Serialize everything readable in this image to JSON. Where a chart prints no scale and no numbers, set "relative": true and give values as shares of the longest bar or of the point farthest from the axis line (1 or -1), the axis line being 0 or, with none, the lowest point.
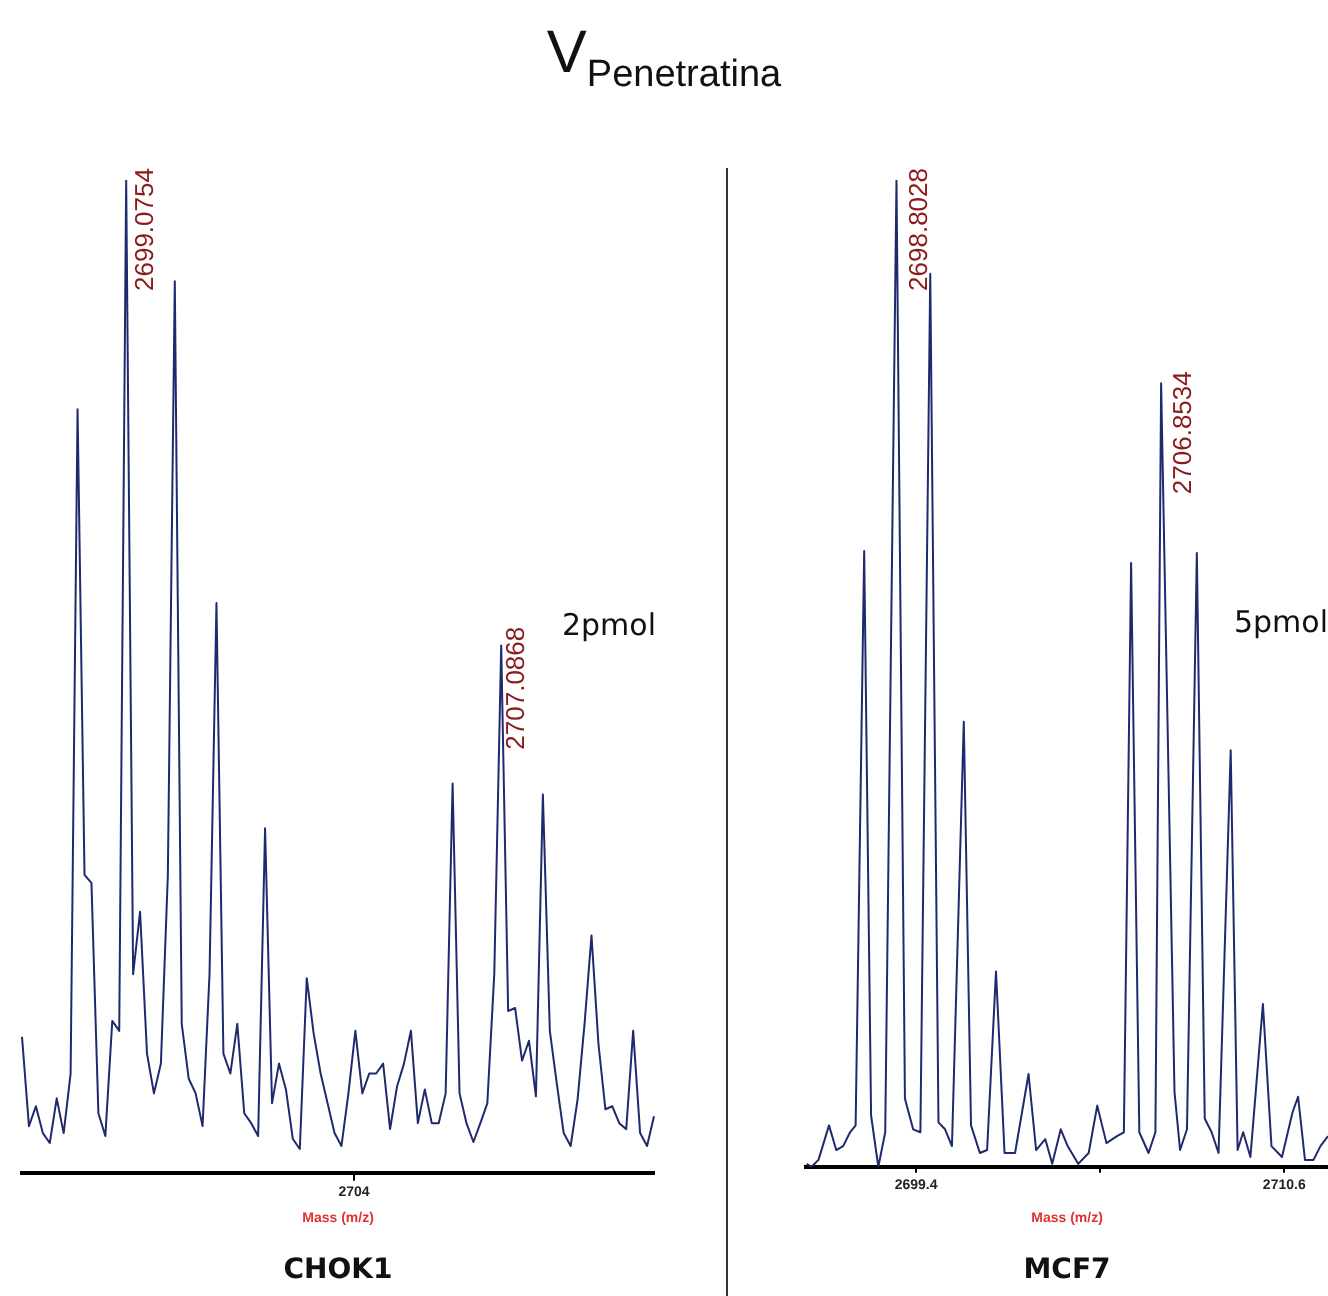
{
  "chart_data": [
    {
      "type": "line",
      "title": "CHOK1",
      "subtitle": "2pmol",
      "xlabel": "Mass (m/z)",
      "relative": true,
      "legend": false,
      "grid": false,
      "marker": "none",
      "line_style": "solid",
      "annotations": [
        "V$_{Penetratina}$",
        "2704",
        "2699.0754",
        "2707.0868"
      ],
      "categories": [
        null,
        null,
        null,
        null,
        null,
        null,
        null,
        null,
        null,
        null,
        null,
        null,
        null,
        null,
        null,
        null,
        null,
        null,
        null,
        null,
        null,
        null,
        null,
        null,
        null,
        null,
        null,
        null,
        null,
        null,
        null,
        null,
        null,
        null,
        null,
        null,
        null,
        null,
        null,
        null,
        null,
        null,
        null,
        null,
        null,
        null,
        null,
        null,
        null,
        null,
        null,
        null,
        null,
        null,
        null,
        null,
        null,
        null,
        null,
        null,
        null,
        null,
        null,
        null,
        null,
        null,
        null,
        null,
        null,
        null,
        null,
        null,
        null,
        null,
        null,
        null,
        null,
        null,
        null,
        null,
        null,
        null,
        null,
        null,
        null,
        null,
        null,
        null,
        null,
        null,
        null,
        null
      ],
      "series": [
        {
          "color": "#1f2a6e",
          "values": [
            0.137,
            0.047,
            0.067,
            0.04,
            0.03,
            0.075,
            0.04,
            0.1,
            0.769,
            0.3,
            0.292,
            0.06,
            0.037,
            0.153,
            0.143,
            1,
            0.2,
            0.263,
            0.12,
            0.08,
            0.11,
            0.3,
            0.898,
            0.15,
            0.095,
            0.08,
            0.047,
            0.2,
            0.574,
            0.12,
            0.1,
            0.15,
            0.06,
            0.05,
            0.037,
            0.347,
            0.07,
            0.11,
            0.084,
            0.034,
            0.024,
            0.196,
            0.14,
            0.1,
            0.07,
            0.04,
            0.027,
            0.08,
            0.143,
            0.08,
            0.1,
            0.1,
            0.11,
            0.044,
            0.087,
            0.11,
            0.143,
            0.05,
            0.084,
            0.05,
            0.05,
            0.08,
            0.392,
            0.08,
            0.05,
            0.031,
            0.05,
            0.07,
            0.2,
            0.531,
            0.163,
            0.166,
            0.113,
            0.133,
            0.077,
            0.381,
            0.143,
            0.09,
            0.04,
            0.027,
            0.074,
            0.15,
            0.239,
            0.13,
            0.064,
            0.067,
            0.05,
            0.044,
            0.143,
            0.04,
            0.027,
            0.057
          ]
        }
      ]
    },
    {
      "type": "line",
      "title": "MCF7",
      "subtitle": "5pmol",
      "xlabel": "Mass (m/z)",
      "relative": true,
      "legend": false,
      "grid": false,
      "marker": "none",
      "line_style": "solid",
      "xlim": [
        2696.05,
        2711.93
      ],
      "xticks": [
        2699.4,
        {
          "value": 2705,
          "label": null
        },
        2710.6
      ],
      "annotations": [
        {
          "text": "2698.8028",
          "x": 2698.8028,
          "y": 1
        },
        {
          "text": "2706.8534",
          "x": 2706.8534,
          "y": 0.794
        }
      ],
      "series": [
        {
          "color": "#1f2a6e",
          "x": [
            2696.07,
            2696.22,
            2696.43,
            2696.75,
            2696.97,
            2697.18,
            2697.39,
            2697.56,
            2697.82,
            2698.03,
            2698.25,
            2698.46,
            2698.8028,
            2699.06,
            2699.31,
            2699.53,
            2699.83,
            2700.08,
            2700.28,
            2700.49,
            2700.85,
            2701.07,
            2701.34,
            2701.56,
            2701.83,
            2702.09,
            2702.41,
            2702.82,
            2703.05,
            2703.33,
            2703.54,
            2703.8,
            2704.01,
            2704.33,
            2704.65,
            2704.91,
            2705.19,
            2705.51,
            2705.72,
            2705.94,
            2706.19,
            2706.47,
            2706.68,
            2706.8534,
            2707.26,
            2707.43,
            2707.64,
            2707.94,
            2708.18,
            2708.39,
            2708.6,
            2708.97,
            2709.18,
            2709.35,
            2709.57,
            2709.95,
            2710.21,
            2710.53,
            2710.85,
            2711.02,
            2711.23,
            2711.49,
            2711.7,
            2711.93
          ],
          "values": [
            0.003,
            0,
            0.007,
            0.042,
            0.017,
            0.021,
            0.035,
            0.042,
            0.624,
            0.052,
            0,
            0.035,
            1,
            0.069,
            0.038,
            0.035,
            0.905,
            0.045,
            0.038,
            0.021,
            0.451,
            0.042,
            0.014,
            0.017,
            0.198,
            0.014,
            0.014,
            0.094,
            0.017,
            0.028,
            0.003,
            0.038,
            0.021,
            0.003,
            0.014,
            0.062,
            0.024,
            0.031,
            0.035,
            0.612,
            0.035,
            0.014,
            0.035,
            0.794,
            0.076,
            0.017,
            0.038,
            0.622,
            0.049,
            0.035,
            0.014,
            0.422,
            0.017,
            0.035,
            0.01,
            0.165,
            0.021,
            0.01,
            0.055,
            0.071,
            0.007,
            0.007,
            0.021,
            0.031
          ]
        }
      ]
    }
  ]
}
